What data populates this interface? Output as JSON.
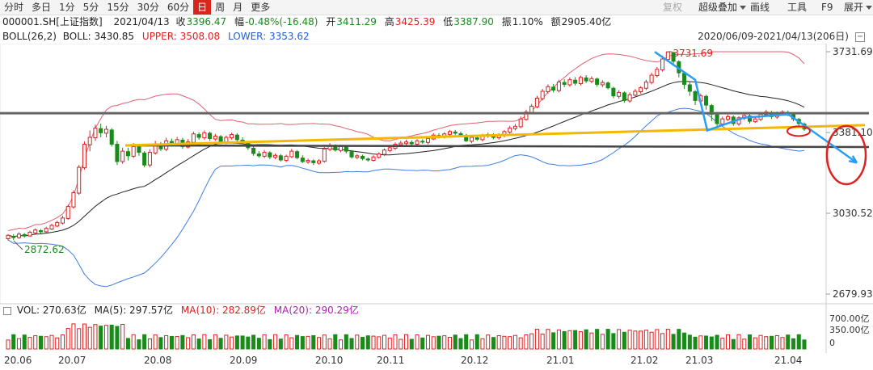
{
  "toolbar": {
    "timeframes": [
      "分时",
      "多日",
      "1分",
      "5分",
      "15分",
      "30分",
      "60分",
      "日",
      "周",
      "月",
      "更多"
    ],
    "active": "日",
    "right_items": [
      {
        "label": "复权",
        "dim": true
      },
      {
        "label": "超级叠加",
        "dim": false
      },
      {
        "label": "画线",
        "dim": false
      },
      {
        "label": "工具",
        "dim": false
      },
      {
        "label": "F9",
        "dim": false
      },
      {
        "label": "展开",
        "dim": false
      }
    ]
  },
  "info": {
    "code": "000001.SH[上证指数]",
    "date": "2021/04/13",
    "close_label": "收",
    "close": "3396.47",
    "change_label": "幅",
    "change": "-0.48%(-16.48)",
    "open_label": "开",
    "open": "3411.29",
    "high_label": "高",
    "high": "3425.39",
    "low_label": "低",
    "low": "3387.90",
    "amp_label": "振",
    "amp": "1.10%",
    "amount_label": "额",
    "amount": "2905.40亿"
  },
  "boll": {
    "title": "BOLL(26,2)",
    "mid": "BOLL: 3430.85",
    "upper": "UPPER: 3508.08",
    "lower": "LOWER: 3353.62",
    "range": "2020/06/09-2021/04/13(206日)"
  },
  "vol": {
    "vol": "VOL: 270.63亿",
    "ma5": "MA(5): 297.57亿",
    "ma10": "MA(10): 282.89亿",
    "ma20": "MA(20): 290.29亿"
  },
  "colors": {
    "up": "#e02020",
    "down": "#1a8a1a",
    "upper": "#e06070",
    "lower": "#3d7fe0",
    "mid": "#222222",
    "annot_blue": "#2a9df4",
    "annot_orange": "#f5b800",
    "annot_red": "#e02020"
  },
  "chart_data": {
    "type": "candlestick",
    "ylim": [
      2679.93,
      3731.69
    ],
    "y_ticks": [
      "3731.69",
      "3381.10",
      "3030.52",
      "2679.93"
    ],
    "high_label": "3731.69",
    "low_label": "2872.62",
    "x_labels": [
      "20.06",
      "20.07",
      "20.08",
      "20.09",
      "20.10",
      "20.11",
      "20.12",
      "21.01",
      "21.02",
      "21.03",
      "21.04"
    ],
    "vol_ticks": [
      "700.00亿",
      "350.00亿",
      "0"
    ],
    "candles": [
      [
        2920,
        2935,
        2912,
        2940
      ],
      [
        2930,
        2925,
        2915,
        2940
      ],
      [
        2925,
        2940,
        2920,
        2948
      ],
      [
        2938,
        2932,
        2925,
        2945
      ],
      [
        2932,
        2948,
        2928,
        2955
      ],
      [
        2945,
        2958,
        2940,
        2965
      ],
      [
        2955,
        2950,
        2942,
        2962
      ],
      [
        2950,
        2965,
        2945,
        2972
      ],
      [
        2962,
        2978,
        2958,
        2985
      ],
      [
        2975,
        2990,
        2970,
        2998
      ],
      [
        2988,
        3010,
        2982,
        3020
      ],
      [
        3008,
        3060,
        3002,
        3068
      ],
      [
        3058,
        3120,
        3050,
        3130
      ],
      [
        3118,
        3230,
        3110,
        3240
      ],
      [
        3228,
        3330,
        3220,
        3342
      ],
      [
        3328,
        3360,
        3300,
        3390
      ],
      [
        3358,
        3400,
        3345,
        3415
      ],
      [
        3398,
        3380,
        3360,
        3420
      ],
      [
        3378,
        3395,
        3360,
        3410
      ],
      [
        3392,
        3330,
        3320,
        3400
      ],
      [
        3330,
        3255,
        3240,
        3345
      ],
      [
        3255,
        3300,
        3245,
        3315
      ],
      [
        3298,
        3280,
        3260,
        3315
      ],
      [
        3278,
        3320,
        3270,
        3335
      ],
      [
        3318,
        3295,
        3280,
        3330
      ],
      [
        3292,
        3240,
        3230,
        3300
      ],
      [
        3240,
        3295,
        3230,
        3308
      ],
      [
        3292,
        3330,
        3285,
        3345
      ],
      [
        3328,
        3310,
        3300,
        3340
      ],
      [
        3308,
        3345,
        3300,
        3358
      ],
      [
        3342,
        3335,
        3320,
        3355
      ],
      [
        3332,
        3350,
        3322,
        3362
      ],
      [
        3348,
        3320,
        3310,
        3358
      ],
      [
        3318,
        3340,
        3312,
        3352
      ],
      [
        3338,
        3375,
        3330,
        3385
      ],
      [
        3372,
        3360,
        3350,
        3382
      ],
      [
        3358,
        3380,
        3350,
        3390
      ],
      [
        3378,
        3355,
        3345,
        3385
      ],
      [
        3353,
        3365,
        3345,
        3375
      ],
      [
        3363,
        3340,
        3330,
        3370
      ],
      [
        3338,
        3360,
        3330,
        3368
      ],
      [
        3358,
        3372,
        3350,
        3380
      ],
      [
        3370,
        3350,
        3340,
        3378
      ],
      [
        3348,
        3340,
        3330,
        3360
      ],
      [
        3338,
        3315,
        3305,
        3345
      ],
      [
        3313,
        3290,
        3280,
        3320
      ],
      [
        3288,
        3280,
        3272,
        3300
      ],
      [
        3278,
        3295,
        3270,
        3305
      ],
      [
        3293,
        3275,
        3265,
        3300
      ],
      [
        3273,
        3282,
        3265,
        3290
      ],
      [
        3280,
        3262,
        3255,
        3288
      ],
      [
        3260,
        3278,
        3252,
        3285
      ],
      [
        3276,
        3300,
        3270,
        3310
      ],
      [
        3298,
        3272,
        3265,
        3305
      ],
      [
        3270,
        3255,
        3248,
        3282
      ],
      [
        3253,
        3260,
        3245,
        3268
      ],
      [
        3258,
        3250,
        3240,
        3265
      ],
      [
        3248,
        3258,
        3242,
        3265
      ],
      [
        3256,
        3310,
        3250,
        3318
      ],
      [
        3308,
        3325,
        3300,
        3335
      ],
      [
        3323,
        3305,
        3298,
        3330
      ],
      [
        3303,
        3320,
        3295,
        3328
      ],
      [
        3318,
        3300,
        3290,
        3325
      ],
      [
        3298,
        3275,
        3268,
        3305
      ],
      [
        3273,
        3280,
        3265,
        3288
      ],
      [
        3278,
        3268,
        3260,
        3285
      ],
      [
        3266,
        3262,
        3255,
        3272
      ],
      [
        3260,
        3275,
        3255,
        3282
      ],
      [
        3273,
        3288,
        3268,
        3295
      ],
      [
        3286,
        3305,
        3280,
        3312
      ],
      [
        3303,
        3315,
        3296,
        3322
      ],
      [
        3313,
        3330,
        3305,
        3338
      ],
      [
        3328,
        3335,
        3320,
        3345
      ],
      [
        3333,
        3340,
        3325,
        3350
      ],
      [
        3338,
        3332,
        3325,
        3348
      ],
      [
        3330,
        3345,
        3325,
        3352
      ],
      [
        3343,
        3340,
        3332,
        3352
      ],
      [
        3338,
        3355,
        3330,
        3362
      ],
      [
        3353,
        3370,
        3348,
        3378
      ],
      [
        3368,
        3365,
        3355,
        3378
      ],
      [
        3363,
        3375,
        3355,
        3382
      ],
      [
        3373,
        3385,
        3365,
        3392
      ],
      [
        3383,
        3378,
        3370,
        3392
      ],
      [
        3376,
        3370,
        3362,
        3385
      ],
      [
        3368,
        3345,
        3340,
        3375
      ],
      [
        3343,
        3360,
        3335,
        3368
      ],
      [
        3358,
        3352,
        3345,
        3365
      ],
      [
        3350,
        3368,
        3342,
        3375
      ],
      [
        3366,
        3372,
        3358,
        3380
      ],
      [
        3370,
        3360,
        3352,
        3378
      ],
      [
        3358,
        3370,
        3350,
        3378
      ],
      [
        3368,
        3385,
        3360,
        3392
      ],
      [
        3383,
        3400,
        3376,
        3410
      ],
      [
        3398,
        3408,
        3390,
        3418
      ],
      [
        3406,
        3440,
        3400,
        3450
      ],
      [
        3438,
        3470,
        3432,
        3480
      ],
      [
        3468,
        3495,
        3460,
        3505
      ],
      [
        3493,
        3530,
        3486,
        3540
      ],
      [
        3528,
        3560,
        3520,
        3570
      ],
      [
        3558,
        3580,
        3550,
        3590
      ],
      [
        3578,
        3565,
        3555,
        3592
      ],
      [
        3563,
        3600,
        3555,
        3610
      ],
      [
        3598,
        3590,
        3578,
        3612
      ],
      [
        3588,
        3610,
        3580,
        3620
      ],
      [
        3608,
        3595,
        3585,
        3622
      ],
      [
        3593,
        3620,
        3585,
        3628
      ],
      [
        3618,
        3605,
        3596,
        3630
      ],
      [
        3603,
        3615,
        3595,
        3625
      ],
      [
        3613,
        3590,
        3580,
        3620
      ],
      [
        3588,
        3598,
        3578,
        3608
      ],
      [
        3596,
        3575,
        3568,
        3602
      ],
      [
        3573,
        3540,
        3530,
        3580
      ],
      [
        3538,
        3555,
        3528,
        3565
      ],
      [
        3553,
        3520,
        3510,
        3560
      ],
      [
        3518,
        3545,
        3510,
        3555
      ],
      [
        3543,
        3560,
        3535,
        3570
      ],
      [
        3558,
        3575,
        3550,
        3582
      ],
      [
        3573,
        3600,
        3565,
        3610
      ],
      [
        3598,
        3630,
        3590,
        3640
      ],
      [
        3628,
        3655,
        3620,
        3665
      ],
      [
        3653,
        3700,
        3645,
        3715
      ],
      [
        3698,
        3731,
        3690,
        3731
      ],
      [
        3728,
        3690,
        3670,
        3731
      ],
      [
        3688,
        3640,
        3620,
        3695
      ],
      [
        3638,
        3590,
        3570,
        3645
      ],
      [
        3588,
        3560,
        3540,
        3600
      ],
      [
        3558,
        3520,
        3500,
        3565
      ],
      [
        3518,
        3540,
        3505,
        3550
      ],
      [
        3538,
        3500,
        3480,
        3545
      ],
      [
        3498,
        3460,
        3430,
        3505
      ],
      [
        3458,
        3420,
        3400,
        3465
      ],
      [
        3418,
        3440,
        3410,
        3450
      ],
      [
        3438,
        3450,
        3430,
        3458
      ],
      [
        3448,
        3420,
        3410,
        3455
      ],
      [
        3418,
        3445,
        3410,
        3452
      ],
      [
        3443,
        3455,
        3435,
        3462
      ],
      [
        3453,
        3430,
        3420,
        3460
      ],
      [
        3428,
        3440,
        3422,
        3448
      ],
      [
        3438,
        3460,
        3430,
        3470
      ],
      [
        3458,
        3470,
        3450,
        3480
      ],
      [
        3468,
        3450,
        3440,
        3475
      ],
      [
        3448,
        3465,
        3440,
        3472
      ],
      [
        3463,
        3470,
        3455,
        3478
      ],
      [
        3468,
        3460,
        3452,
        3476
      ],
      [
        3458,
        3440,
        3430,
        3465
      ],
      [
        3438,
        3420,
        3410,
        3445
      ],
      [
        3418,
        3396,
        3388,
        3425
      ]
    ],
    "annotations": {
      "orange_trendline": [
        [
          155,
          3325
        ],
        [
          1070,
          3413
        ]
      ],
      "black_support": [
        [
          155,
          3325
        ],
        [
          1075,
          3318
        ]
      ],
      "black_resistance": [
        [
          0,
          3465
        ],
        [
          1075,
          3465
        ]
      ],
      "blue_path": [
        [
          810,
          3731
        ],
        [
          860,
          3610
        ],
        [
          875,
          3390
        ],
        [
          920,
          3445
        ],
        [
          975,
          3460
        ],
        [
          1000,
          3400
        ],
        [
          1060,
          3250
        ]
      ],
      "red_ellipse_small": [
        988,
        3387,
        14,
        6
      ],
      "red_ellipse_big": [
        1047,
        3283,
        24,
        36
      ]
    }
  }
}
